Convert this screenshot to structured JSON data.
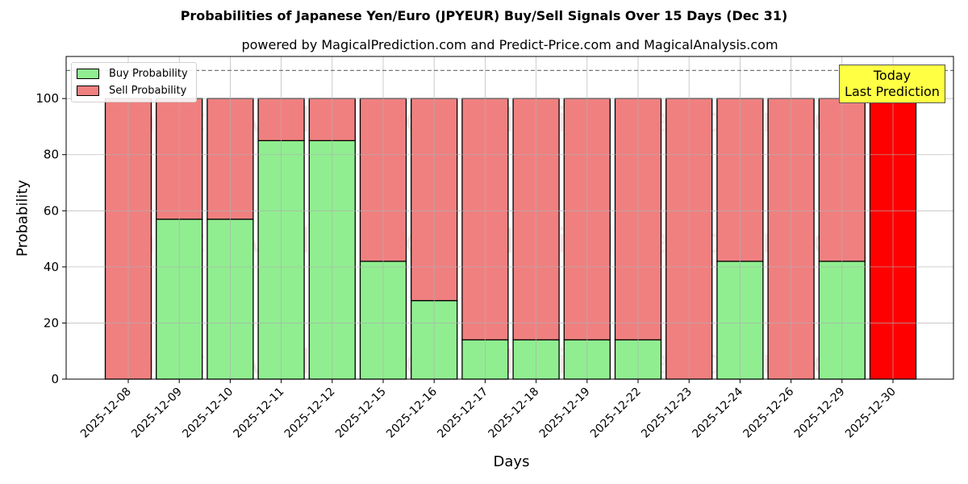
{
  "chart": {
    "title": "Probabilities of Japanese Yen/Euro (JPYEUR) Buy/Sell Signals Over 15 Days (Dec 31)",
    "subtitle": "powered by MagicalPrediction.com and Predict-Price.com and MagicalAnalysis.com",
    "xlabel": "Days",
    "ylabel": "Probability",
    "legend": {
      "buy": "Buy Probability",
      "sell": "Sell Probability"
    },
    "annotation": {
      "line1": "Today",
      "line2": "Last Prediction"
    },
    "watermarks": [
      "MagicalAnalysis.com",
      "MagicalPrediction.com"
    ],
    "colors": {
      "buy": "#90ee90",
      "sell": "#f08080",
      "today": "#ff0000",
      "annotation_bg": "#ffff44"
    }
  },
  "chart_data": {
    "type": "bar",
    "stacked": true,
    "title": "Probabilities of Japanese Yen/Euro (JPYEUR) Buy/Sell Signals Over 15 Days (Dec 31)",
    "subtitle": "powered by MagicalPrediction.com and Predict-Price.com and MagicalAnalysis.com",
    "xlabel": "Days",
    "ylabel": "Probability",
    "ylim": [
      0,
      115
    ],
    "yticks": [
      0,
      20,
      40,
      60,
      80,
      100
    ],
    "grid": true,
    "legend_position": "upper left",
    "reference_line": {
      "y": 110,
      "style": "dashed"
    },
    "categories": [
      "2025-12-08",
      "2025-12-09",
      "2025-12-10",
      "2025-12-11",
      "2025-12-12",
      "2025-12-15",
      "2025-12-16",
      "2025-12-17",
      "2025-12-18",
      "2025-12-19",
      "2025-12-22",
      "2025-12-23",
      "2025-12-24",
      "2025-12-26",
      "2025-12-29",
      "2025-12-30"
    ],
    "series": [
      {
        "name": "Buy Probability",
        "values": [
          0,
          57,
          57,
          85,
          85,
          42,
          28,
          14,
          14,
          14,
          14,
          0,
          42,
          0,
          42,
          0
        ]
      },
      {
        "name": "Sell Probability",
        "values": [
          100,
          43,
          43,
          15,
          15,
          58,
          72,
          86,
          86,
          86,
          86,
          100,
          58,
          100,
          58,
          100
        ]
      }
    ],
    "highlight": {
      "category": "2025-12-30",
      "label": "Today\nLast Prediction",
      "color": "#ff0000"
    }
  }
}
